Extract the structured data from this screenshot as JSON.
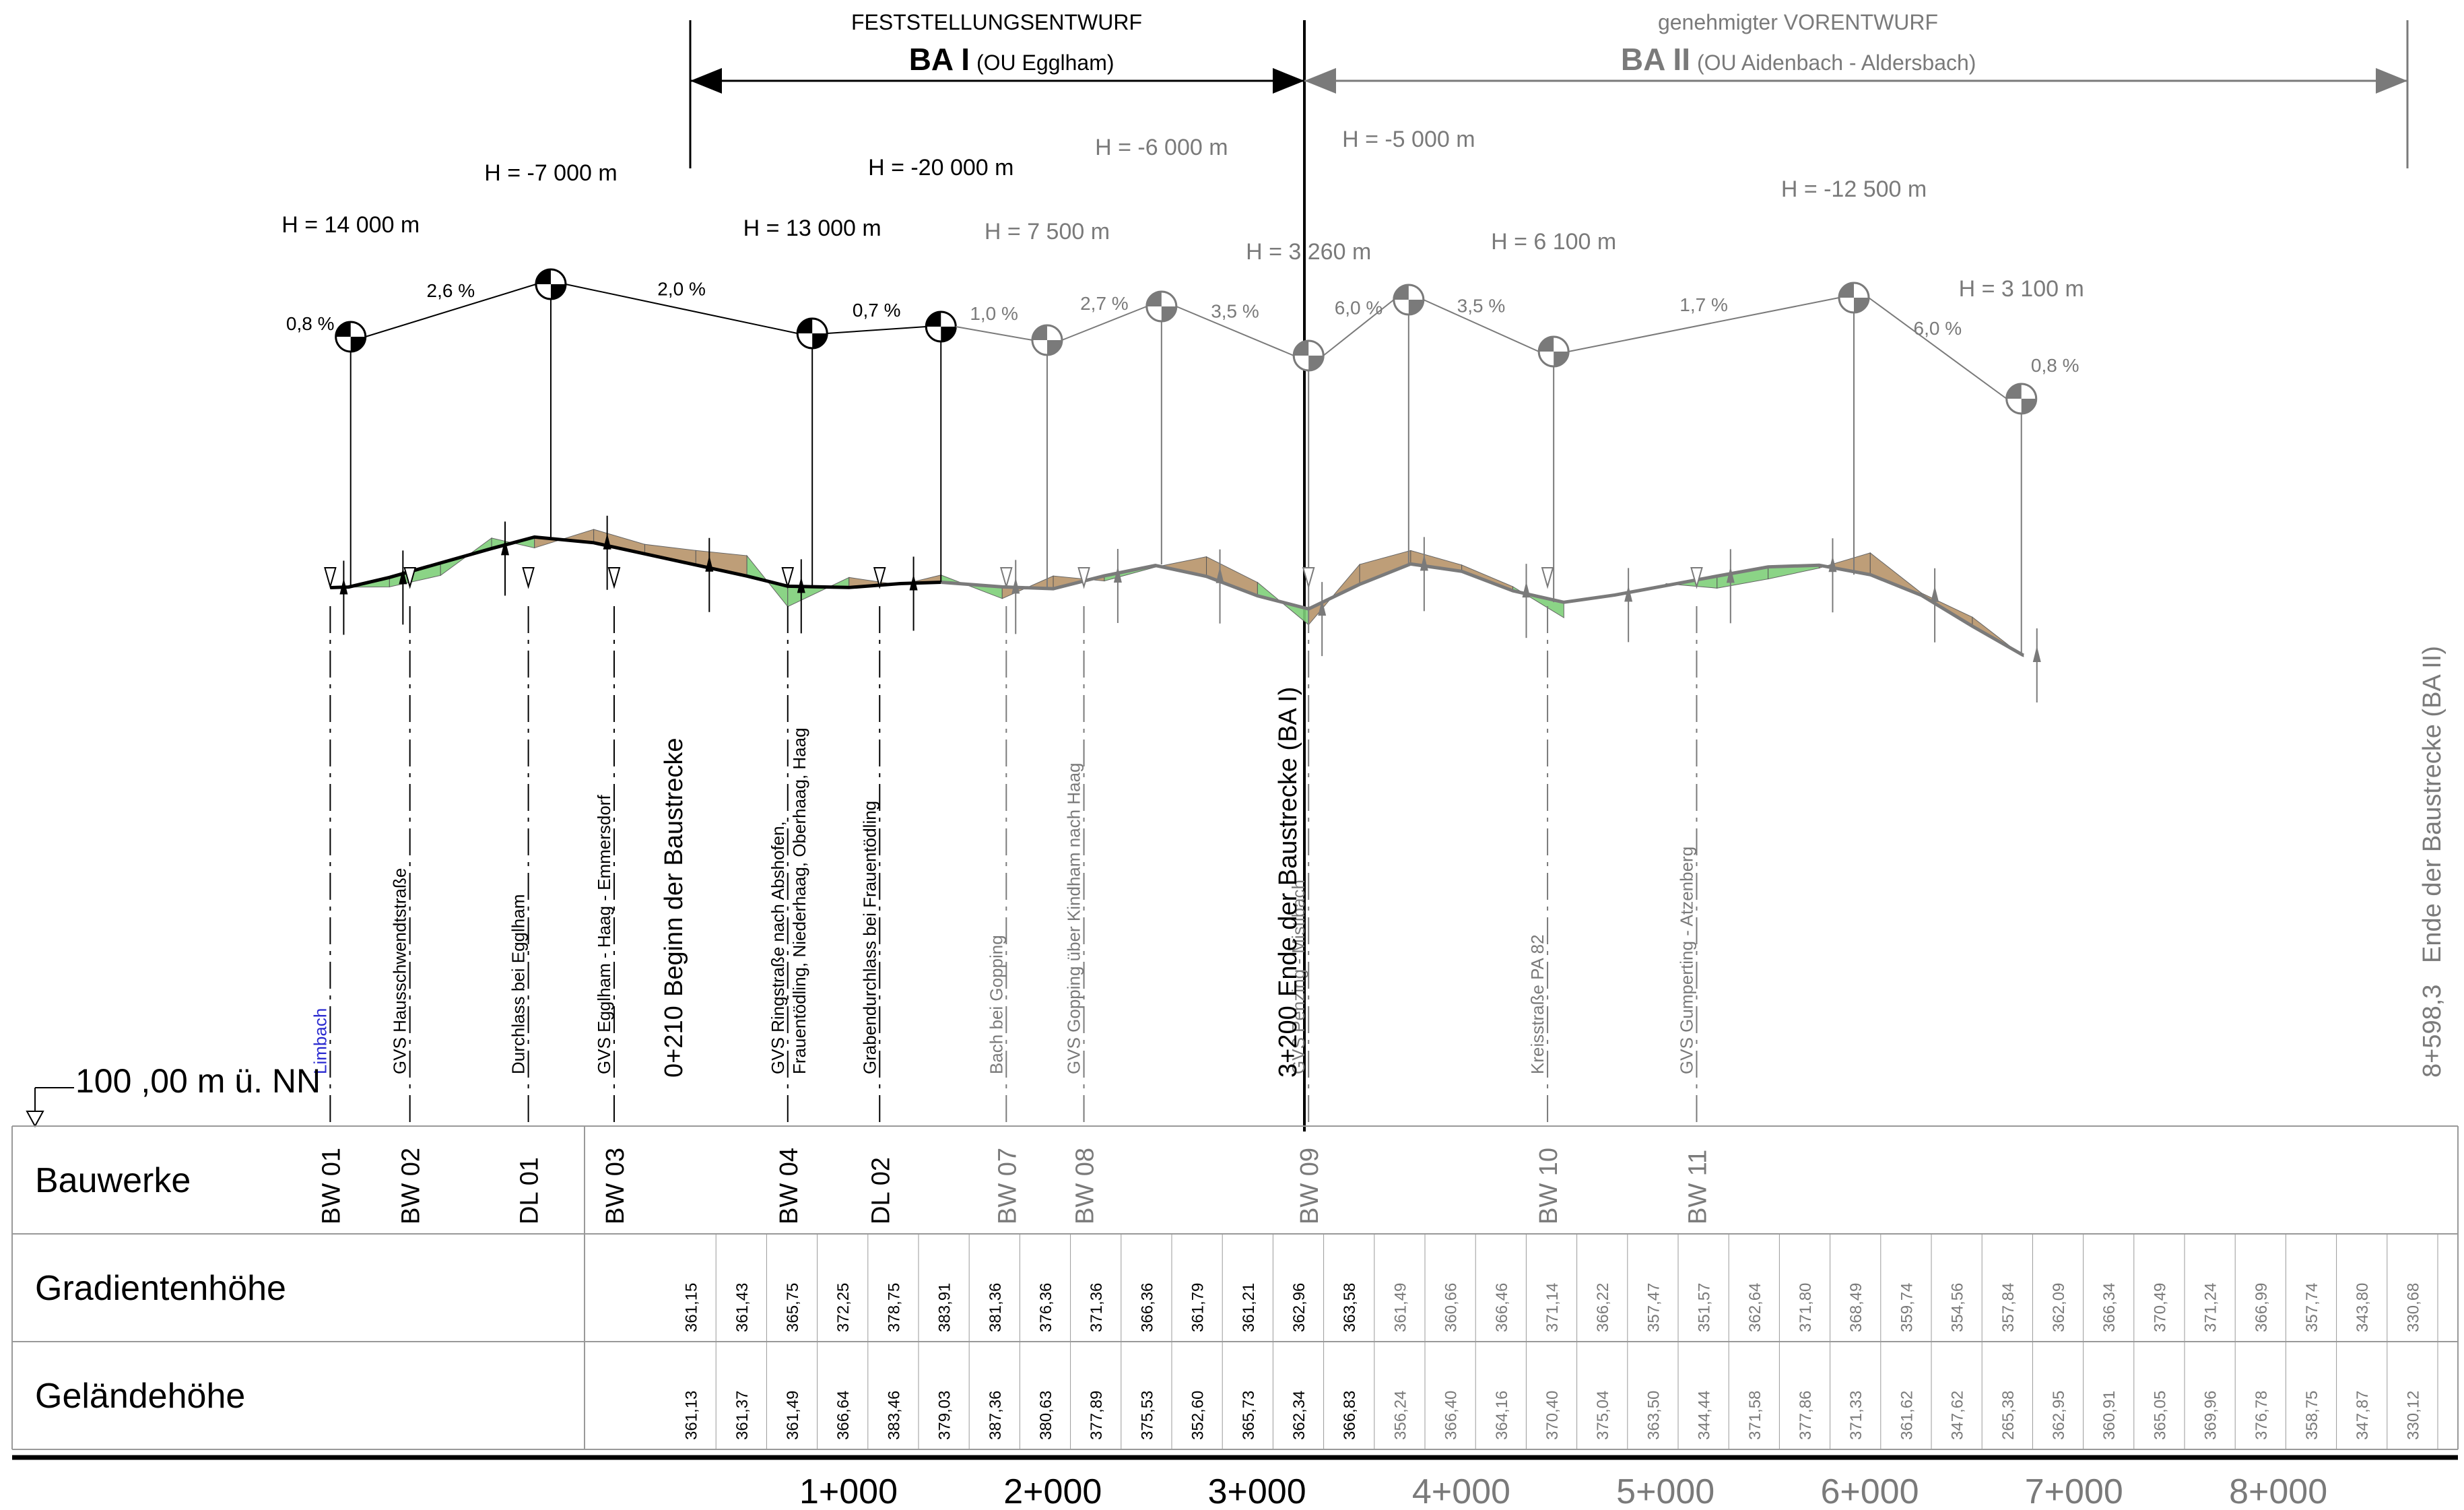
{
  "header": {
    "ba1": {
      "status": "FESTSTELLUNGSENTWURF",
      "name": "BA I",
      "sub": "(OU Egglham)"
    },
    "ba2": {
      "status": "genehmigter VORENTWURF",
      "name": "BA II",
      "sub": "(OU Aidenbach - Aldersbach)"
    }
  },
  "datum_label": "100 ,00 m ü. NN",
  "row_labels": {
    "bauwerke": "Bauwerke",
    "gradient": "Gradientenhöhe",
    "terrain": "Geländehöhe"
  },
  "colors": {
    "ba1": "#000000",
    "ba2": "#7a7a7a",
    "cut": "#b8946a",
    "fill": "#7fd07a",
    "link": "#2a2ad0"
  },
  "chart_data": {
    "type": "line",
    "title": "",
    "xlabel": "",
    "ylabel": "",
    "datum": 100,
    "stations": [
      "1+000",
      "2+000",
      "3+000",
      "4+000",
      "5+000",
      "6+000",
      "7+000",
      "8+000"
    ],
    "station_values": [
      1000,
      2000,
      3000,
      4000,
      5000,
      6000,
      7000,
      8000
    ],
    "section_boundary": 3200,
    "start": {
      "station": 210,
      "label": "0+210",
      "text": "Beginn der Baustrecke"
    },
    "end_ba1": {
      "station": 3200,
      "label": "3+200",
      "text": "Ende der Baustrecke (BA I)"
    },
    "end_ba2": {
      "station": 8598.3,
      "label": "8+598,3",
      "text": "Ende der Baustrecke (BA II)"
    },
    "vertical_curves": [
      {
        "station": 310,
        "H": "H = 14 000 m",
        "y": 361.4,
        "ba": 1
      },
      {
        "station": 1290,
        "H": "H = -7 000 m",
        "y": 383.9,
        "ba": 1
      },
      {
        "station": 2570,
        "H": "H = 13 000 m",
        "y": 361.8,
        "ba": 1
      },
      {
        "station": 3200,
        "H": "H = -20 000 m",
        "y": 363.6,
        "ba": 1
      },
      {
        "station": 3720,
        "H": "H = 7 500 m",
        "y": 361.0,
        "ba": 2
      },
      {
        "station": 4280,
        "H": "H = -6 000 m",
        "y": 371.6,
        "ba": 2
      },
      {
        "station": 5000,
        "H": "H = 3 260 m",
        "y": 351.6,
        "ba": 2
      },
      {
        "station": 5490,
        "H": "H = -5 000 m",
        "y": 371.8,
        "ba": 2
      },
      {
        "station": 6200,
        "H": "H = 6 100 m",
        "y": 354.6,
        "ba": 2
      },
      {
        "station": 7670,
        "H": "H = -12 500 m",
        "y": 367.0,
        "ba": 2
      },
      {
        "station": 8490,
        "H": "H = 3 100 m",
        "y": 330.7,
        "ba": 2
      }
    ],
    "grades": [
      {
        "text": "0,8 %",
        "from": 0,
        "to": 1,
        "dir": "down-left",
        "ba": 1
      },
      {
        "text": "2,6 %",
        "from": 0,
        "to": 1,
        "dir": "left",
        "ba": 1
      },
      {
        "text": "2,0 %",
        "from": 1,
        "to": 2,
        "dir": "right",
        "ba": 1
      },
      {
        "text": "0,7 %",
        "from": 2,
        "to": 3,
        "dir": "left",
        "ba": 1
      },
      {
        "text": "1,0 %",
        "from": 3,
        "to": 4,
        "dir": "right",
        "ba": 2
      },
      {
        "text": "2,7 %",
        "from": 4,
        "to": 5,
        "dir": "left",
        "ba": 2
      },
      {
        "text": "3,5 %",
        "from": 5,
        "to": 6,
        "dir": "right",
        "ba": 2
      },
      {
        "text": "6,0 %",
        "from": 6,
        "to": 7,
        "dir": "left",
        "ba": 2
      },
      {
        "text": "3,5 %",
        "from": 7,
        "to": 8,
        "dir": "right",
        "ba": 2
      },
      {
        "text": "1,7 %",
        "from": 8,
        "to": 9,
        "dir": "left",
        "ba": 2
      },
      {
        "text": "6,0 %",
        "from": 9,
        "to": 10,
        "dir": "right",
        "ba": 2
      },
      {
        "text": "0,8 %",
        "from": 10,
        "to": 10,
        "dir": "right",
        "ba": 2
      }
    ],
    "structures": [
      {
        "code": "BW 01",
        "station": 210,
        "desc": "Limbach",
        "ba": 1,
        "blue": true
      },
      {
        "code": "BW 02",
        "station": 600,
        "desc": "GVS Hausschwendtstraße",
        "ba": 1
      },
      {
        "code": "DL 01",
        "station": 1180,
        "desc": "Durchlass bei Egglham",
        "ba": 1
      },
      {
        "code": "BW 03",
        "station": 1600,
        "desc": "GVS Egglham - Haag - Emmersdorf",
        "ba": 1
      },
      {
        "code": "BW 04",
        "station": 2450,
        "desc": "GVS Ringstraße nach Abshofen,",
        "desc2": "Frauentödling, Niederhaag, Oberhaag, Haag",
        "ba": 1
      },
      {
        "code": "DL 02",
        "station": 2900,
        "desc": "Grabendurchlass bei Frauentödling",
        "ba": 1
      },
      {
        "code": "BW 07",
        "station": 3520,
        "desc": "Bach bei Gopping",
        "ba": 2
      },
      {
        "code": "BW 08",
        "station": 3900,
        "desc": "GVS Gopping über Kindham nach Haag",
        "ba": 2
      },
      {
        "code": "BW 09",
        "station": 5000,
        "desc": "GVS Penzing - Mistlbach",
        "ba": 2
      },
      {
        "code": "BW 10",
        "station": 6170,
        "desc": "Kreisstraße PA 82",
        "ba": 2
      },
      {
        "code": "BW 11",
        "station": 6900,
        "desc": "GVS Gumperting - Atzenberg",
        "ba": 2
      }
    ],
    "gradient_heights": [
      "361,15",
      "361,43",
      "365,75",
      "372,25",
      "378,75",
      "383,91",
      "381,36",
      "376,36",
      "371,36",
      "366,36",
      "361,79",
      "361,21",
      "362,96",
      "363,58",
      "361,49",
      "360,66",
      "366,46",
      "371,14",
      "366,22",
      "357,47",
      "351,57",
      "362,64",
      "371,80",
      "368,49",
      "359,74",
      "354,56",
      "357,84",
      "362,09",
      "366,34",
      "370,49",
      "371,24",
      "366,99",
      "357,74",
      "343,80",
      "330,68"
    ],
    "terrain_heights": [
      "361,13",
      "361,37",
      "361,49",
      "366,64",
      "383,46",
      "379,03",
      "387,36",
      "380,63",
      "377,89",
      "375,53",
      "352,60",
      "365,73",
      "362,34",
      "366,83",
      "356,24",
      "366,40",
      "364,16",
      "370,40",
      "375,04",
      "363,50",
      "344,44",
      "371,58",
      "377,86",
      "371,33",
      "361,62",
      "347,62",
      "265,38",
      "362,95",
      "360,91",
      "365,05",
      "369,96",
      "376,78",
      "358,75",
      "347,87",
      "330,12"
    ],
    "height_stations": [
      210,
      300,
      500,
      750,
      1000,
      1210,
      1500,
      1750,
      2000,
      2250,
      2450,
      2750,
      3000,
      3200,
      3500,
      3750,
      4000,
      4250,
      4500,
      4750,
      5000,
      5250,
      5500,
      5750,
      6000,
      6250,
      6500,
      6750,
      7000,
      7250,
      7500,
      7750,
      8000,
      8250,
      8500
    ]
  }
}
